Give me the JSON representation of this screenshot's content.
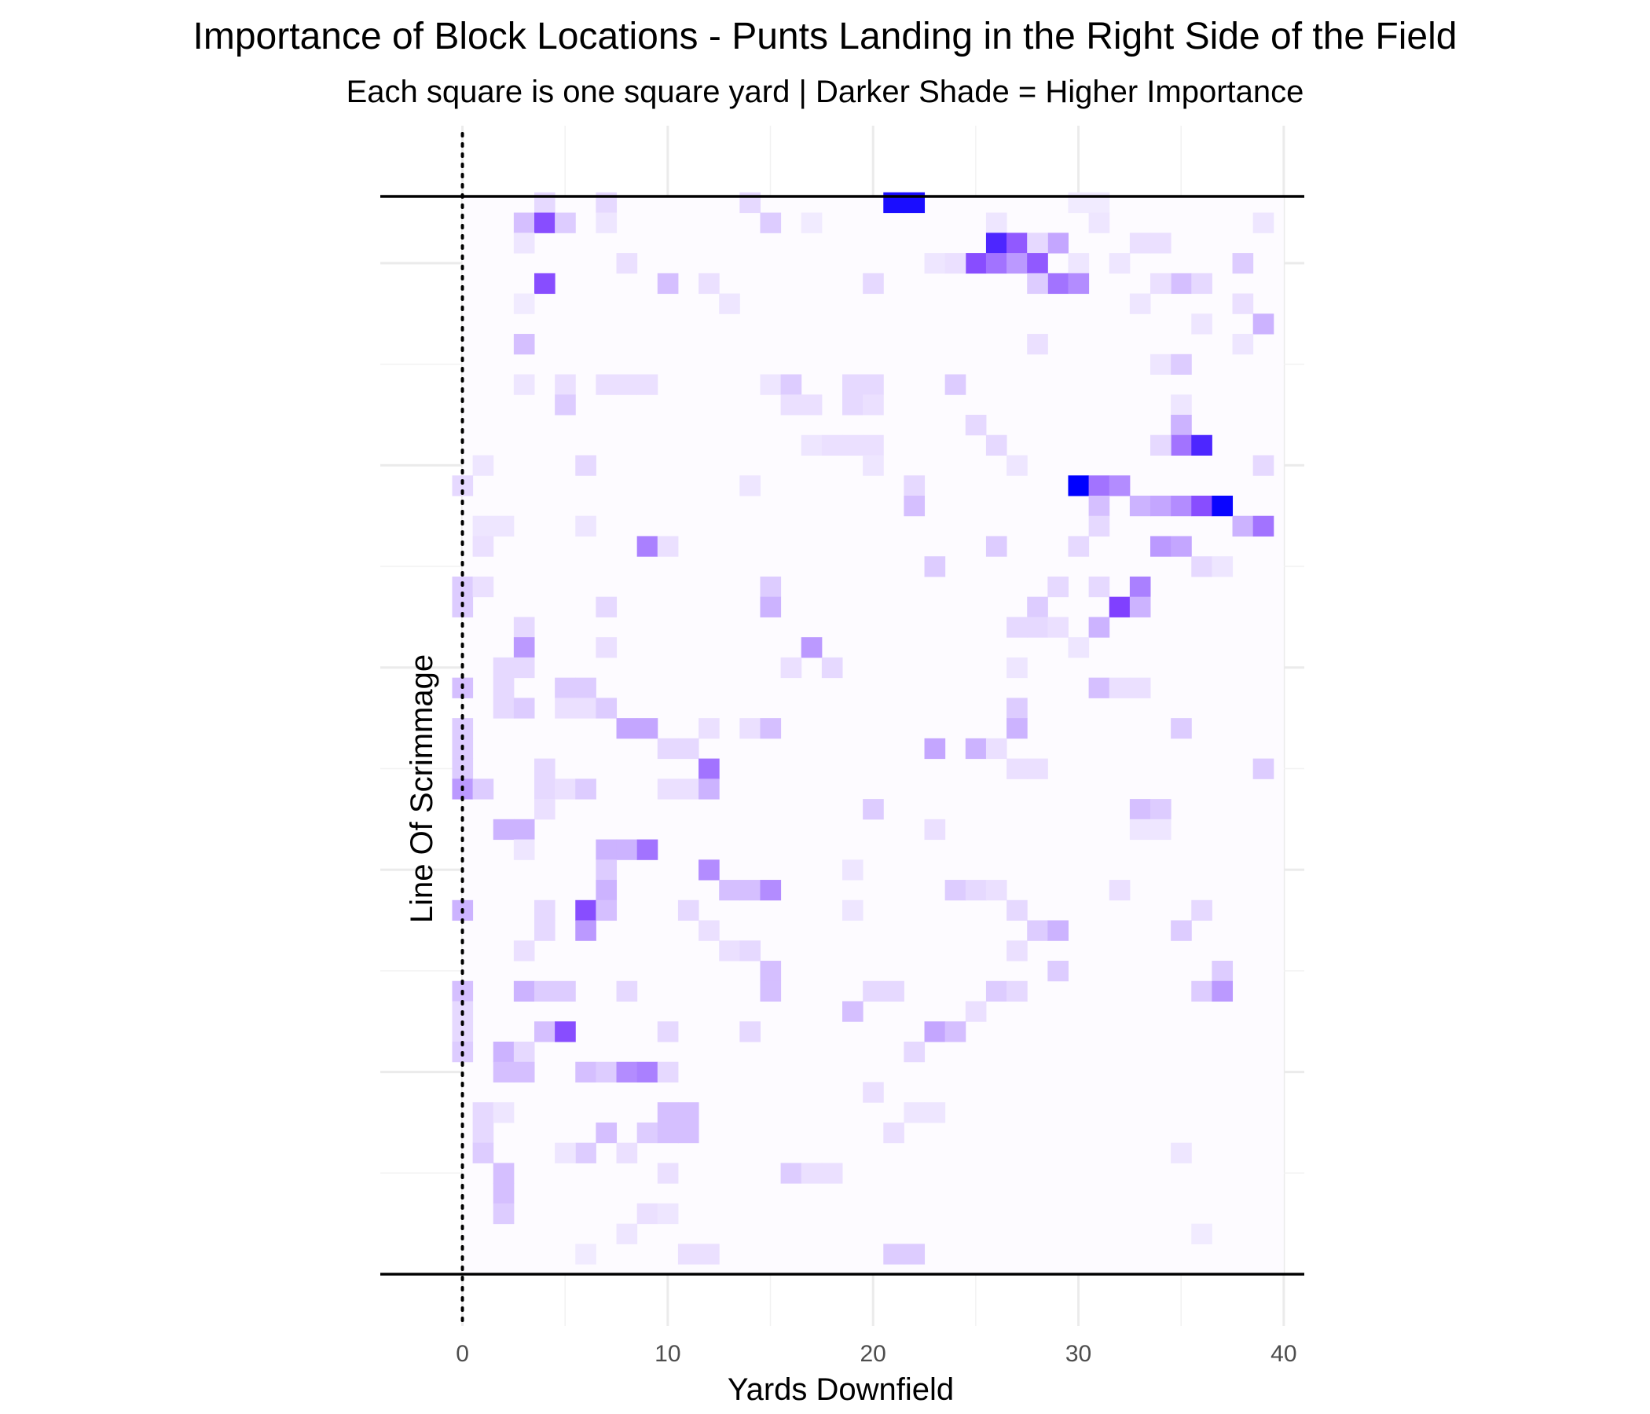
{
  "chart_data": {
    "type": "heatmap",
    "title": "Importance of Block Locations - Punts Landing in the Right Side of the Field",
    "subtitle": "Each square is one square yard | Darker Shade = Higher Importance",
    "xlabel": "Yards Downfield",
    "ylabel": "Line Of Scrimmage",
    "xlim": [
      -4,
      41
    ],
    "ylim": [
      0,
      53.3
    ],
    "x_ticks": [
      0,
      10,
      20,
      30,
      40
    ],
    "y_gridlines": [
      0,
      10,
      20,
      30,
      40,
      50
    ],
    "field_edge_lines": [
      0,
      53.3
    ],
    "line_of_scrimmage_x": 0,
    "grid": true,
    "colors": {
      "low": "#ffffff",
      "high": "#0000ff",
      "mid": "#8040ff",
      "edge_lines": "#000000"
    },
    "note": "cells: [x_yards, y_yards, importance 0-1]",
    "cells": [
      [
        21,
        53,
        0.95
      ],
      [
        22,
        53,
        0.95
      ],
      [
        4,
        53,
        0.15
      ],
      [
        7,
        53,
        0.15
      ],
      [
        14,
        53,
        0.15
      ],
      [
        30,
        53,
        0.08
      ],
      [
        31,
        53,
        0.08
      ],
      [
        3,
        52,
        0.25
      ],
      [
        4,
        52,
        0.7
      ],
      [
        5,
        52,
        0.2
      ],
      [
        7,
        52,
        0.1
      ],
      [
        15,
        52,
        0.2
      ],
      [
        17,
        52,
        0.08
      ],
      [
        26,
        52,
        0.1
      ],
      [
        31,
        52,
        0.1
      ],
      [
        39,
        52,
        0.1
      ],
      [
        3,
        51,
        0.1
      ],
      [
        26,
        51,
        0.85
      ],
      [
        27,
        51,
        0.65
      ],
      [
        29,
        51,
        0.35
      ],
      [
        28,
        51,
        0.15
      ],
      [
        33,
        51,
        0.12
      ],
      [
        34,
        51,
        0.12
      ],
      [
        8,
        50,
        0.12
      ],
      [
        25,
        50,
        0.7
      ],
      [
        26,
        50,
        0.55
      ],
      [
        27,
        50,
        0.4
      ],
      [
        28,
        50,
        0.65
      ],
      [
        23,
        50,
        0.1
      ],
      [
        24,
        50,
        0.12
      ],
      [
        30,
        50,
        0.1
      ],
      [
        32,
        50,
        0.1
      ],
      [
        38,
        50,
        0.2
      ],
      [
        4,
        49,
        0.7
      ],
      [
        10,
        49,
        0.25
      ],
      [
        12,
        49,
        0.12
      ],
      [
        20,
        49,
        0.15
      ],
      [
        29,
        49,
        0.55
      ],
      [
        30,
        49,
        0.45
      ],
      [
        28,
        49,
        0.2
      ],
      [
        35,
        49,
        0.25
      ],
      [
        36,
        49,
        0.15
      ],
      [
        34,
        49,
        0.12
      ],
      [
        3,
        48,
        0.08
      ],
      [
        13,
        48,
        0.1
      ],
      [
        33,
        48,
        0.1
      ],
      [
        38,
        48,
        0.12
      ],
      [
        39,
        47,
        0.3
      ],
      [
        36,
        47,
        0.1
      ],
      [
        3,
        46,
        0.25
      ],
      [
        28,
        46,
        0.12
      ],
      [
        38,
        46,
        0.1
      ],
      [
        34,
        45,
        0.1
      ],
      [
        35,
        45,
        0.2
      ],
      [
        3,
        44,
        0.1
      ],
      [
        5,
        44,
        0.12
      ],
      [
        7,
        44,
        0.12
      ],
      [
        8,
        44,
        0.12
      ],
      [
        9,
        44,
        0.12
      ],
      [
        15,
        44,
        0.1
      ],
      [
        16,
        44,
        0.2
      ],
      [
        19,
        44,
        0.15
      ],
      [
        20,
        44,
        0.15
      ],
      [
        24,
        44,
        0.2
      ],
      [
        5,
        43,
        0.2
      ],
      [
        16,
        43,
        0.12
      ],
      [
        17,
        43,
        0.12
      ],
      [
        19,
        43,
        0.15
      ],
      [
        20,
        43,
        0.12
      ],
      [
        35,
        43,
        0.1
      ],
      [
        25,
        42,
        0.15
      ],
      [
        35,
        42,
        0.3
      ],
      [
        17,
        41,
        0.1
      ],
      [
        18,
        41,
        0.12
      ],
      [
        19,
        41,
        0.12
      ],
      [
        20,
        41,
        0.12
      ],
      [
        26,
        41,
        0.15
      ],
      [
        35,
        41,
        0.55
      ],
      [
        36,
        41,
        0.85
      ],
      [
        34,
        41,
        0.15
      ],
      [
        1,
        40,
        0.1
      ],
      [
        6,
        40,
        0.15
      ],
      [
        20,
        40,
        0.1
      ],
      [
        27,
        40,
        0.1
      ],
      [
        39,
        40,
        0.15
      ],
      [
        0,
        39,
        0.15
      ],
      [
        14,
        39,
        0.1
      ],
      [
        22,
        39,
        0.15
      ],
      [
        30,
        39,
        1.0
      ],
      [
        31,
        39,
        0.55
      ],
      [
        32,
        39,
        0.45
      ],
      [
        22,
        38,
        0.25
      ],
      [
        31,
        38,
        0.25
      ],
      [
        33,
        38,
        0.3
      ],
      [
        34,
        38,
        0.35
      ],
      [
        35,
        38,
        0.45
      ],
      [
        36,
        38,
        0.7
      ],
      [
        37,
        38,
        0.98
      ],
      [
        1,
        37,
        0.1
      ],
      [
        2,
        37,
        0.1
      ],
      [
        6,
        37,
        0.1
      ],
      [
        31,
        37,
        0.15
      ],
      [
        38,
        37,
        0.3
      ],
      [
        39,
        37,
        0.55
      ],
      [
        1,
        36,
        0.12
      ],
      [
        9,
        36,
        0.5
      ],
      [
        10,
        36,
        0.12
      ],
      [
        26,
        36,
        0.2
      ],
      [
        30,
        36,
        0.15
      ],
      [
        34,
        36,
        0.4
      ],
      [
        35,
        36,
        0.35
      ],
      [
        23,
        35,
        0.2
      ],
      [
        36,
        35,
        0.15
      ],
      [
        37,
        35,
        0.1
      ],
      [
        0,
        34,
        0.2
      ],
      [
        1,
        34,
        0.12
      ],
      [
        15,
        34,
        0.2
      ],
      [
        29,
        34,
        0.15
      ],
      [
        31,
        34,
        0.15
      ],
      [
        33,
        34,
        0.5
      ],
      [
        0,
        33,
        0.2
      ],
      [
        7,
        33,
        0.15
      ],
      [
        15,
        33,
        0.3
      ],
      [
        32,
        33,
        0.75
      ],
      [
        33,
        33,
        0.3
      ],
      [
        28,
        33,
        0.2
      ],
      [
        3,
        32,
        0.15
      ],
      [
        27,
        32,
        0.15
      ],
      [
        28,
        32,
        0.15
      ],
      [
        29,
        32,
        0.12
      ],
      [
        31,
        32,
        0.3
      ],
      [
        3,
        31,
        0.4
      ],
      [
        7,
        31,
        0.12
      ],
      [
        17,
        31,
        0.4
      ],
      [
        30,
        31,
        0.1
      ],
      [
        2,
        30,
        0.15
      ],
      [
        3,
        30,
        0.15
      ],
      [
        16,
        30,
        0.12
      ],
      [
        18,
        30,
        0.15
      ],
      [
        27,
        30,
        0.1
      ],
      [
        0,
        29,
        0.25
      ],
      [
        2,
        29,
        0.15
      ],
      [
        5,
        29,
        0.2
      ],
      [
        6,
        29,
        0.2
      ],
      [
        31,
        29,
        0.25
      ],
      [
        32,
        29,
        0.12
      ],
      [
        33,
        29,
        0.12
      ],
      [
        2,
        28,
        0.15
      ],
      [
        3,
        28,
        0.2
      ],
      [
        5,
        28,
        0.12
      ],
      [
        6,
        28,
        0.12
      ],
      [
        7,
        28,
        0.2
      ],
      [
        27,
        28,
        0.2
      ],
      [
        0,
        27,
        0.2
      ],
      [
        8,
        27,
        0.35
      ],
      [
        9,
        27,
        0.35
      ],
      [
        12,
        27,
        0.12
      ],
      [
        14,
        27,
        0.12
      ],
      [
        15,
        27,
        0.25
      ],
      [
        27,
        27,
        0.3
      ],
      [
        35,
        27,
        0.2
      ],
      [
        0,
        26,
        0.2
      ],
      [
        10,
        26,
        0.15
      ],
      [
        11,
        26,
        0.15
      ],
      [
        23,
        26,
        0.35
      ],
      [
        25,
        26,
        0.3
      ],
      [
        26,
        26,
        0.12
      ],
      [
        0,
        25,
        0.2
      ],
      [
        4,
        25,
        0.15
      ],
      [
        12,
        25,
        0.55
      ],
      [
        27,
        25,
        0.12
      ],
      [
        28,
        25,
        0.12
      ],
      [
        39,
        25,
        0.2
      ],
      [
        0,
        24,
        0.4
      ],
      [
        1,
        24,
        0.2
      ],
      [
        4,
        24,
        0.15
      ],
      [
        5,
        24,
        0.12
      ],
      [
        6,
        24,
        0.2
      ],
      [
        10,
        24,
        0.12
      ],
      [
        11,
        24,
        0.12
      ],
      [
        12,
        24,
        0.3
      ],
      [
        4,
        23,
        0.12
      ],
      [
        20,
        23,
        0.2
      ],
      [
        33,
        23,
        0.25
      ],
      [
        34,
        23,
        0.2
      ],
      [
        2,
        22,
        0.3
      ],
      [
        3,
        22,
        0.3
      ],
      [
        23,
        22,
        0.12
      ],
      [
        33,
        22,
        0.1
      ],
      [
        34,
        22,
        0.1
      ],
      [
        3,
        21,
        0.1
      ],
      [
        7,
        21,
        0.3
      ],
      [
        8,
        21,
        0.3
      ],
      [
        9,
        21,
        0.55
      ],
      [
        7,
        20,
        0.2
      ],
      [
        12,
        20,
        0.45
      ],
      [
        19,
        20,
        0.1
      ],
      [
        7,
        19,
        0.3
      ],
      [
        13,
        19,
        0.25
      ],
      [
        14,
        19,
        0.25
      ],
      [
        15,
        19,
        0.45
      ],
      [
        24,
        19,
        0.2
      ],
      [
        25,
        19,
        0.15
      ],
      [
        26,
        19,
        0.12
      ],
      [
        32,
        19,
        0.12
      ],
      [
        0,
        18,
        0.3
      ],
      [
        4,
        18,
        0.15
      ],
      [
        6,
        18,
        0.7
      ],
      [
        7,
        18,
        0.25
      ],
      [
        11,
        18,
        0.15
      ],
      [
        19,
        18,
        0.1
      ],
      [
        27,
        18,
        0.15
      ],
      [
        36,
        18,
        0.15
      ],
      [
        6,
        17,
        0.4
      ],
      [
        4,
        17,
        0.15
      ],
      [
        12,
        17,
        0.12
      ],
      [
        28,
        17,
        0.2
      ],
      [
        29,
        17,
        0.3
      ],
      [
        35,
        17,
        0.2
      ],
      [
        3,
        16,
        0.12
      ],
      [
        13,
        16,
        0.12
      ],
      [
        14,
        16,
        0.15
      ],
      [
        27,
        16,
        0.12
      ],
      [
        15,
        15,
        0.25
      ],
      [
        29,
        15,
        0.2
      ],
      [
        37,
        15,
        0.2
      ],
      [
        0,
        14,
        0.25
      ],
      [
        3,
        14,
        0.3
      ],
      [
        4,
        14,
        0.2
      ],
      [
        5,
        14,
        0.2
      ],
      [
        8,
        14,
        0.15
      ],
      [
        15,
        14,
        0.25
      ],
      [
        20,
        14,
        0.15
      ],
      [
        21,
        14,
        0.15
      ],
      [
        26,
        14,
        0.2
      ],
      [
        27,
        14,
        0.15
      ],
      [
        36,
        14,
        0.2
      ],
      [
        37,
        14,
        0.4
      ],
      [
        0,
        13,
        0.15
      ],
      [
        19,
        13,
        0.25
      ],
      [
        25,
        13,
        0.12
      ],
      [
        0,
        12,
        0.15
      ],
      [
        4,
        12,
        0.25
      ],
      [
        5,
        12,
        0.7
      ],
      [
        10,
        12,
        0.15
      ],
      [
        14,
        12,
        0.15
      ],
      [
        23,
        12,
        0.35
      ],
      [
        24,
        12,
        0.25
      ],
      [
        0,
        11,
        0.2
      ],
      [
        2,
        11,
        0.3
      ],
      [
        3,
        11,
        0.15
      ],
      [
        22,
        11,
        0.15
      ],
      [
        2,
        10,
        0.25
      ],
      [
        3,
        10,
        0.25
      ],
      [
        6,
        10,
        0.25
      ],
      [
        7,
        10,
        0.2
      ],
      [
        8,
        10,
        0.45
      ],
      [
        9,
        10,
        0.5
      ],
      [
        10,
        10,
        0.15
      ],
      [
        20,
        9,
        0.12
      ],
      [
        1,
        8,
        0.15
      ],
      [
        2,
        8,
        0.1
      ],
      [
        10,
        8,
        0.25
      ],
      [
        11,
        8,
        0.25
      ],
      [
        22,
        8,
        0.1
      ],
      [
        23,
        8,
        0.1
      ],
      [
        1,
        7,
        0.15
      ],
      [
        7,
        7,
        0.25
      ],
      [
        9,
        7,
        0.2
      ],
      [
        10,
        7,
        0.25
      ],
      [
        11,
        7,
        0.25
      ],
      [
        21,
        7,
        0.12
      ],
      [
        1,
        6,
        0.2
      ],
      [
        6,
        6,
        0.2
      ],
      [
        5,
        6,
        0.1
      ],
      [
        8,
        6,
        0.12
      ],
      [
        35,
        6,
        0.1
      ],
      [
        2,
        5,
        0.25
      ],
      [
        10,
        5,
        0.12
      ],
      [
        16,
        5,
        0.2
      ],
      [
        17,
        5,
        0.12
      ],
      [
        18,
        5,
        0.12
      ],
      [
        2,
        4,
        0.25
      ],
      [
        2,
        3,
        0.2
      ],
      [
        9,
        3,
        0.12
      ],
      [
        10,
        3,
        0.1
      ],
      [
        8,
        2,
        0.1
      ],
      [
        36,
        2,
        0.08
      ],
      [
        21,
        1,
        0.2
      ],
      [
        22,
        1,
        0.2
      ],
      [
        11,
        1,
        0.12
      ],
      [
        12,
        1,
        0.12
      ],
      [
        6,
        1,
        0.08
      ]
    ]
  }
}
